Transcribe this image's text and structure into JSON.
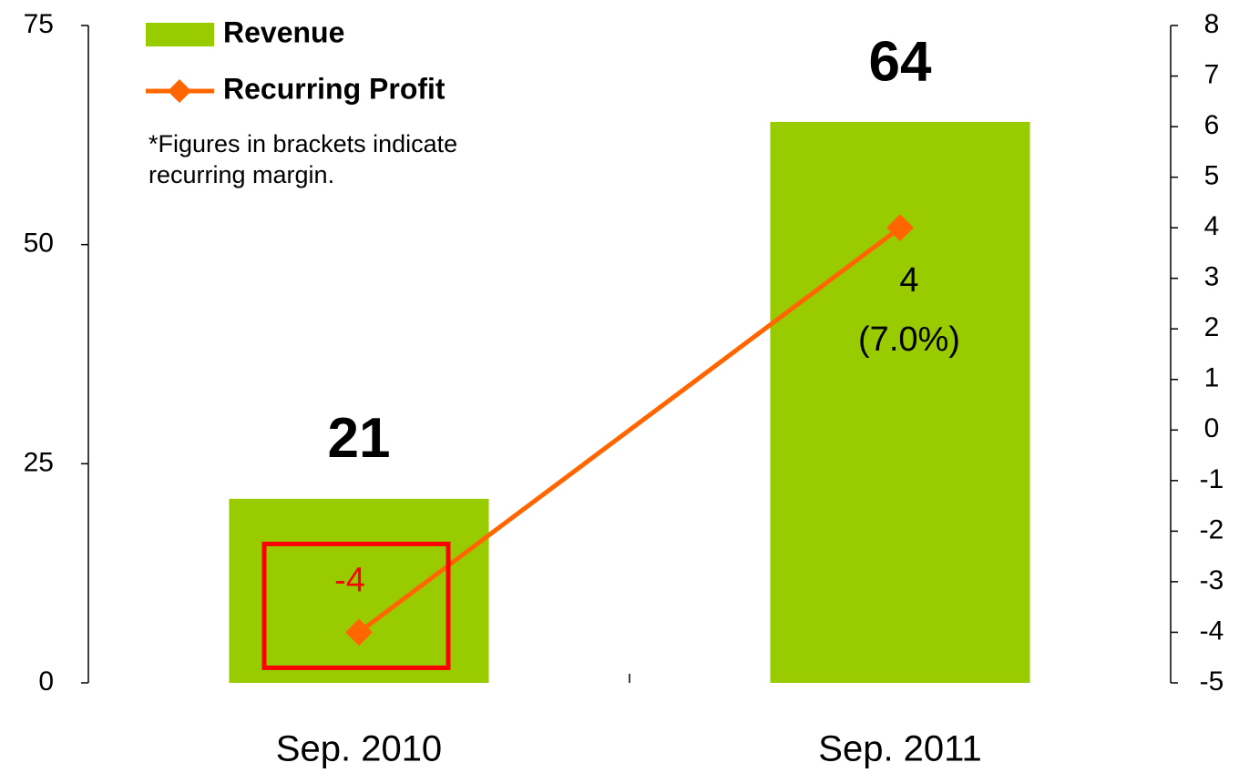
{
  "chart_data": {
    "type": "bar_line",
    "categories": [
      "Sep. 2010",
      "Sep. 2011"
    ],
    "series": [
      {
        "name": "Revenue",
        "type": "bar",
        "color": "#99cc00",
        "values": [
          21,
          64
        ]
      },
      {
        "name": "Recurring Profit",
        "type": "line",
        "axis": "y2",
        "color": "#ff6600",
        "values": [
          -4,
          4
        ],
        "margin_labels": [
          null,
          "(7.0%)"
        ],
        "highlight_color": "#ff0000"
      }
    ],
    "note": [
      "*Figures in brackets indicate",
      "recurring margin."
    ],
    "ylim": [
      0,
      75
    ],
    "yticks": [
      0,
      25,
      50,
      75
    ],
    "y2lim": [
      -5,
      8
    ],
    "y2ticks": [
      -5,
      -4,
      -3,
      -2,
      -1,
      0,
      1,
      2,
      3,
      4,
      5,
      6,
      7,
      8
    ]
  }
}
